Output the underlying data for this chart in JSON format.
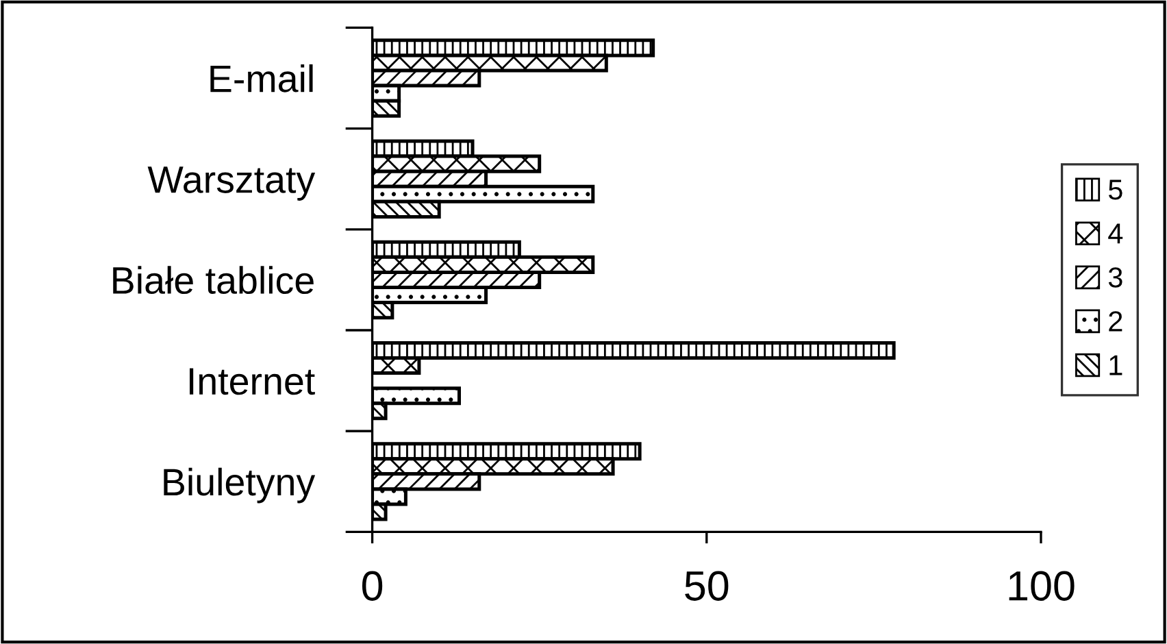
{
  "chart_data": {
    "type": "bar",
    "orientation": "horizontal",
    "categories": [
      "E-mail",
      "Warsztaty",
      "Białe tablice",
      "Internet",
      "Biuletyny"
    ],
    "series": [
      {
        "name": "5",
        "color": "#000000",
        "values": [
          42,
          15,
          22,
          78,
          40
        ]
      },
      {
        "name": "4",
        "color": "#000000",
        "values": [
          35,
          25,
          33,
          7,
          36
        ]
      },
      {
        "name": "3",
        "color": "#000000",
        "values": [
          16,
          17,
          25,
          null,
          16
        ]
      },
      {
        "name": "2",
        "color": "#000000",
        "values": [
          4,
          33,
          17,
          13,
          5
        ]
      },
      {
        "name": "1",
        "color": "#000000",
        "values": [
          4,
          10,
          3,
          2,
          2
        ]
      }
    ],
    "xlim": [
      0,
      100
    ],
    "xticks": [
      0,
      50,
      100
    ],
    "grid": false,
    "legend": "right"
  }
}
